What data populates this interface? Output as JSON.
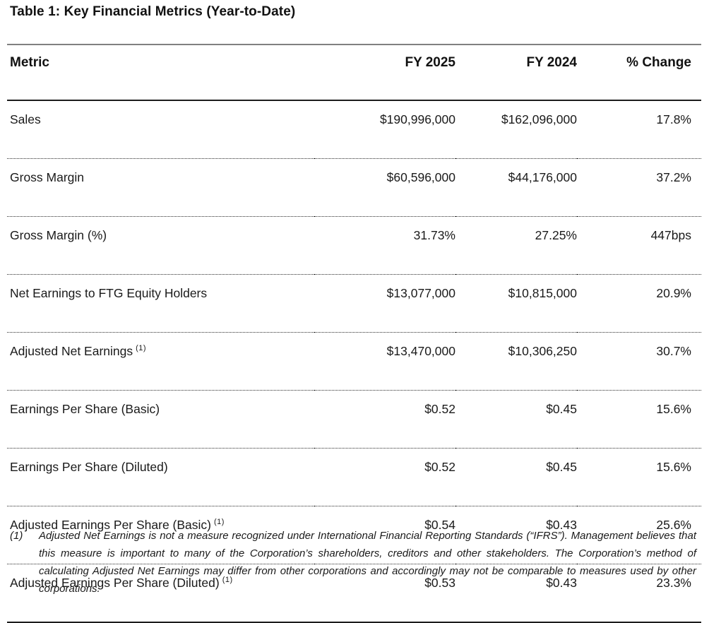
{
  "title": "Table 1: Key Financial Metrics (Year-to-Date)",
  "table": {
    "headers": {
      "metric": "Metric",
      "fy2025": "FY 2025",
      "fy2024": "FY 2024",
      "change": "% Change"
    },
    "rows": [
      {
        "metric": "Sales",
        "fy2025": "$190,996,000",
        "fy2024": "$162,096,000",
        "change": "17.8%"
      },
      {
        "metric": "Gross Margin",
        "fy2025": "$60,596,000",
        "fy2024": "$44,176,000",
        "change": "37.2%"
      },
      {
        "metric": "Gross Margin (%)",
        "fy2025": "31.73%",
        "fy2024": "27.25%",
        "change": "447bps"
      },
      {
        "metric": "Net Earnings to FTG Equity Holders",
        "fy2025": "$13,077,000",
        "fy2024": "$10,815,000",
        "change": "20.9%"
      },
      {
        "metric": "Adjusted Net Earnings",
        "footnote_ref": "(1)",
        "fy2025": "$13,470,000",
        "fy2024": "$10,306,250",
        "change": "30.7%"
      },
      {
        "metric": "Earnings Per Share (Basic)",
        "fy2025": "$0.52",
        "fy2024": "$0.45",
        "change": "15.6%"
      },
      {
        "metric": "Earnings Per Share (Diluted)",
        "fy2025": "$0.52",
        "fy2024": "$0.45",
        "change": "15.6%"
      },
      {
        "metric": "Adjusted Earnings Per Share (Basic)",
        "footnote_ref": "(1)",
        "fy2025": "$0.54",
        "fy2024": "$0.43",
        "change": "25.6%"
      },
      {
        "metric": "Adjusted Earnings Per Share (Diluted)",
        "footnote_ref": "(1)",
        "fy2025": "$0.53",
        "fy2024": "$0.43",
        "change": "23.3%"
      }
    ]
  },
  "footnote": {
    "marker": "(1)",
    "text": "Adjusted Net Earnings is not a measure recognized under International Financial Reporting Standards (“IFRS”). Management believes that this measure is important to many of the Corporation’s shareholders, creditors and other stakeholders. The Corporation’s method of calculating Adjusted Net Earnings may differ from other corporations and accordingly may not be comparable to measures used by other corporations."
  },
  "colors": {
    "text": "#1a1a1a",
    "top_rule": "#808080",
    "heavy_rule": "#1c1c1c",
    "row_rule_dotted": "#2a2a2a",
    "background": "#ffffff"
  }
}
